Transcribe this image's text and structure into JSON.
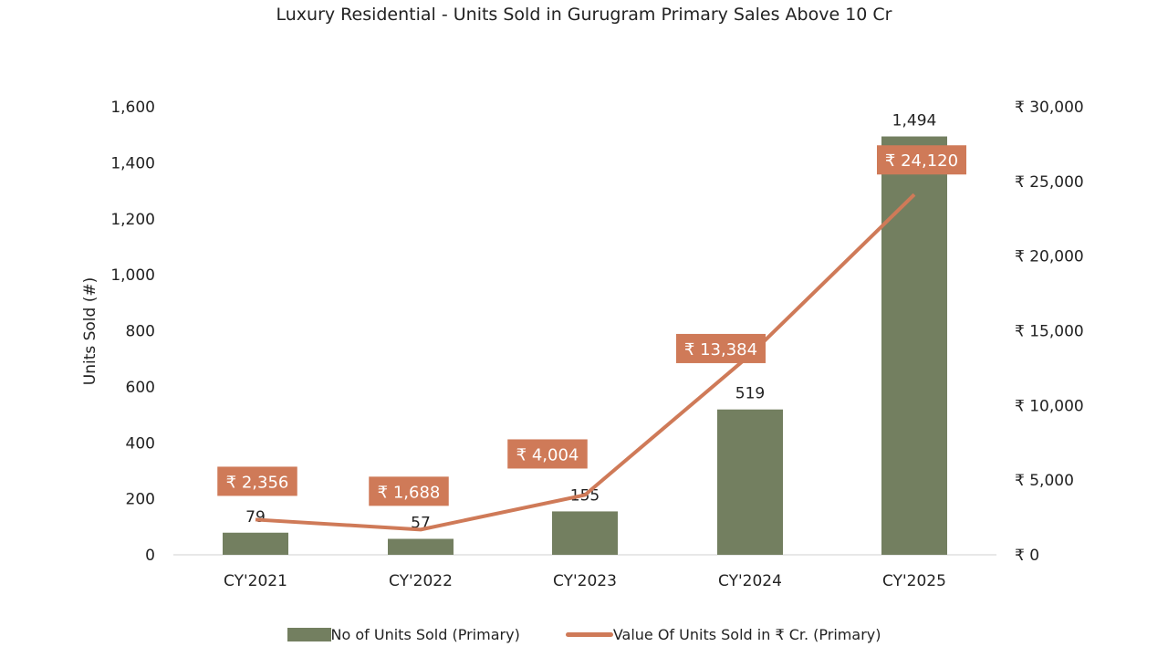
{
  "chart_data": {
    "type": "bar+line",
    "title": "Luxury Residential - Units Sold in Gurugram Primary Sales Above 10 Cr",
    "ylabel": "Units Sold (#)",
    "y2label": "",
    "categories": [
      "CY'2021",
      "CY'2022",
      "CY'2023",
      "CY'2024",
      "CY'2025"
    ],
    "ylim": [
      0,
      1600
    ],
    "y_ticks": [
      "0",
      "200",
      "400",
      "600",
      "800",
      "1,000",
      "1,200",
      "1,400",
      "1,600"
    ],
    "y2lim": [
      0,
      30000
    ],
    "y2_ticks": [
      "₹ 0",
      "₹ 5,000",
      "₹ 10,000",
      "₹ 15,000",
      "₹ 20,000",
      "₹ 25,000",
      "₹ 30,000"
    ],
    "series": [
      {
        "name": "No of Units Sold (Primary)",
        "type": "bar",
        "axis": "left",
        "color": "#737f60",
        "values": [
          79,
          57,
          155,
          519,
          1494
        ],
        "labels": [
          "79",
          "57",
          "155",
          "519",
          "1,494"
        ]
      },
      {
        "name": "Value Of Units Sold in ₹ Cr. (Primary)",
        "type": "line",
        "axis": "right",
        "color": "#cf7a58",
        "values": [
          2356,
          1688,
          4004,
          13384,
          24120
        ],
        "labels": [
          "₹ 2,356",
          "₹ 1,688",
          "₹ 4,004",
          "₹ 13,384",
          "₹ 24,120"
        ]
      }
    ],
    "grid": false,
    "legend_position": "bottom"
  }
}
